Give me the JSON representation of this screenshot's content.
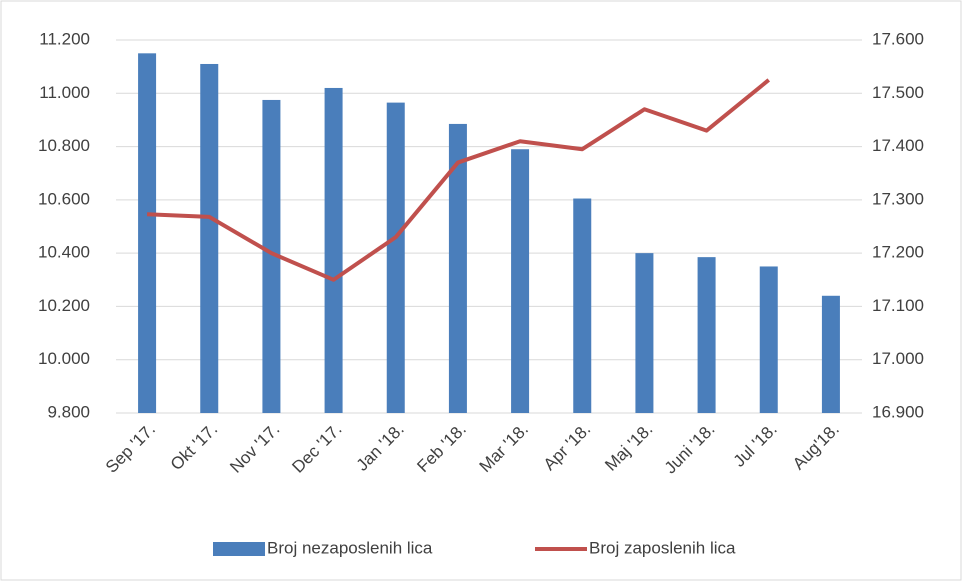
{
  "chart_data": {
    "type": "bar-line",
    "categories": [
      "Sep '17.",
      "Okt '17.",
      "Nov '17.",
      "Dec '17.",
      "Jan '18.",
      "Feb '18.",
      "Mar '18.",
      "Apr '18.",
      "Maj '18.",
      "Juni '18.",
      "Jul '18.",
      "Aug'18."
    ],
    "series": [
      {
        "name": "Broj nezaposlenih lica",
        "type": "bar",
        "color": "#4a7ebb",
        "axis": "y",
        "values": [
          11150,
          11110,
          10975,
          11020,
          10965,
          10885,
          10790,
          10605,
          10400,
          10385,
          10350,
          10240
        ]
      },
      {
        "name": "Broj zaposlenih lica",
        "type": "line",
        "color": "#c0504d",
        "axis": "y2",
        "values": [
          17273,
          17268,
          17200,
          17150,
          17230,
          17370,
          17410,
          17395,
          17470,
          17430,
          17525,
          null
        ]
      }
    ],
    "ylim": [
      9800,
      11200
    ],
    "yticks": [
      {
        "value": 9800,
        "label": "9.800"
      },
      {
        "value": 10000,
        "label": "10.000"
      },
      {
        "value": 10200,
        "label": "10.200"
      },
      {
        "value": 10400,
        "label": "10.400"
      },
      {
        "value": 10600,
        "label": "10.600"
      },
      {
        "value": 10800,
        "label": "10.800"
      },
      {
        "value": 11000,
        "label": "11.000"
      },
      {
        "value": 11200,
        "label": "11.200"
      }
    ],
    "y2lim": [
      16900,
      17600
    ],
    "y2ticks": [
      {
        "value": 16900,
        "label": "16.900"
      },
      {
        "value": 17000,
        "label": "17.000"
      },
      {
        "value": 17100,
        "label": "17.100"
      },
      {
        "value": 17200,
        "label": "17.200"
      },
      {
        "value": 17300,
        "label": "17.300"
      },
      {
        "value": 17400,
        "label": "17.400"
      },
      {
        "value": 17500,
        "label": "17.500"
      },
      {
        "value": 17600,
        "label": "17.600"
      }
    ],
    "grid": true,
    "legend": "bottom"
  }
}
